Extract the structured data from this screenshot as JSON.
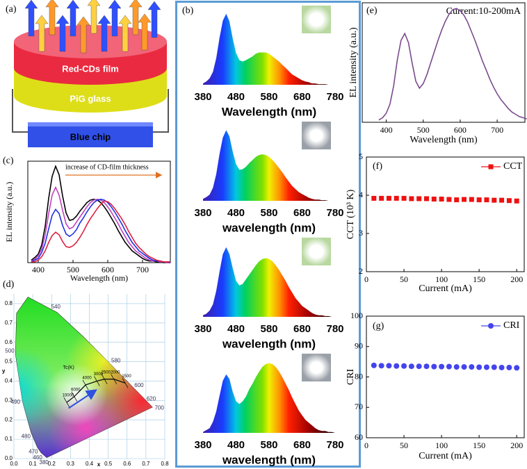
{
  "panel_labels": [
    "(a)",
    "(b)",
    "(c)",
    "(d)",
    "(e)",
    "(f)",
    "(g)"
  ],
  "diagram_a": {
    "layers": [
      "Red-CDs film",
      "PiG glass",
      "Blue chip"
    ]
  },
  "chart_data": [
    {
      "type": "line",
      "annotation": "increase of CD-film thickness",
      "xlabel": "Wavelength (nm)",
      "ylabel": "EL intensity (a.u.)",
      "x": [
        380,
        390,
        400,
        410,
        420,
        430,
        440,
        450,
        460,
        470,
        480,
        490,
        500,
        510,
        520,
        530,
        540,
        550,
        560,
        570,
        580,
        590,
        600,
        610,
        620,
        630,
        640,
        650,
        660,
        670,
        680,
        690,
        700,
        710,
        720,
        730,
        740,
        750,
        760,
        770,
        780
      ],
      "series": [
        {
          "color": "#000000",
          "values": [
            0.03,
            0.06,
            0.1,
            0.21,
            0.43,
            0.76,
            1.02,
            1.14,
            1.04,
            0.79,
            0.59,
            0.5,
            0.51,
            0.55,
            0.61,
            0.66,
            0.71,
            0.74,
            0.75,
            0.74,
            0.71,
            0.66,
            0.6,
            0.53,
            0.46,
            0.38,
            0.31,
            0.24,
            0.19,
            0.14,
            0.11,
            0.08,
            0.05,
            0.03,
            0.02,
            0.02,
            0.01,
            0.01,
            0,
            0,
            0
          ]
        },
        {
          "color": "#c040c0",
          "values": [
            0.02,
            0.04,
            0.08,
            0.16,
            0.33,
            0.58,
            0.8,
            0.89,
            0.8,
            0.62,
            0.46,
            0.4,
            0.42,
            0.48,
            0.54,
            0.6,
            0.66,
            0.71,
            0.74,
            0.75,
            0.74,
            0.71,
            0.66,
            0.6,
            0.53,
            0.46,
            0.38,
            0.31,
            0.24,
            0.19,
            0.14,
            0.11,
            0.08,
            0.05,
            0.03,
            0.02,
            0.02,
            0.01,
            0.01,
            0,
            0
          ]
        },
        {
          "color": "#2030e0",
          "values": [
            0.01,
            0.03,
            0.05,
            0.12,
            0.23,
            0.4,
            0.56,
            0.63,
            0.58,
            0.44,
            0.34,
            0.31,
            0.34,
            0.39,
            0.47,
            0.53,
            0.6,
            0.66,
            0.71,
            0.74,
            0.75,
            0.74,
            0.71,
            0.66,
            0.6,
            0.53,
            0.46,
            0.38,
            0.31,
            0.24,
            0.19,
            0.14,
            0.11,
            0.08,
            0.05,
            0.03,
            0.02,
            0.02,
            0.01,
            0.01,
            0
          ]
        },
        {
          "color": "#e02040",
          "values": [
            0.01,
            0.01,
            0.03,
            0.07,
            0.14,
            0.24,
            0.32,
            0.36,
            0.33,
            0.25,
            0.19,
            0.18,
            0.2,
            0.24,
            0.3,
            0.37,
            0.45,
            0.52,
            0.58,
            0.64,
            0.69,
            0.73,
            0.72,
            0.69,
            0.64,
            0.58,
            0.52,
            0.45,
            0.37,
            0.3,
            0.23,
            0.18,
            0.14,
            0.1,
            0.07,
            0.05,
            0.03,
            0.02,
            0.01,
            0.01,
            0.01
          ]
        }
      ],
      "xlim": [
        370,
        780
      ],
      "xticks": [
        400,
        500,
        600,
        700
      ],
      "ylim": [
        0,
        1.2
      ]
    },
    {
      "type": "cie",
      "xlabel": "x",
      "ylabel": "y",
      "xlim": [
        0,
        0.8
      ],
      "ylim": [
        0,
        0.85
      ],
      "grid": true,
      "xticks": [
        {
          "value": 0,
          "label": "0.0"
        },
        {
          "value": 0.1,
          "label": "0.1"
        },
        {
          "value": 0.2,
          "label": "0.2"
        },
        {
          "value": 0.3,
          "label": "0.3"
        },
        {
          "value": 0.4,
          "label": "0.4"
        },
        {
          "value": 0.5,
          "label": "0.5"
        },
        {
          "value": 0.6,
          "label": "0.6"
        },
        {
          "value": 0.7,
          "label": "0.7"
        },
        {
          "value": 0.8,
          "label": "0.8"
        }
      ],
      "yticks": [
        {
          "value": 0,
          "label": "0.0"
        },
        {
          "value": 0.1,
          "label": "0.1"
        },
        {
          "value": 0.2,
          "label": "0.2"
        },
        {
          "value": 0.3,
          "label": "0.3"
        },
        {
          "value": 0.4,
          "label": "0.4"
        },
        {
          "value": 0.5,
          "label": "0.5"
        },
        {
          "value": 0.6,
          "label": "0.6"
        },
        {
          "value": 0.7,
          "label": "0.7"
        },
        {
          "value": 0.8,
          "label": "0.8"
        }
      ],
      "spectral_locus": {
        "x": [
          0.1741,
          0.144,
          0.1241,
          0.0913,
          0.0454,
          0.0082,
          0.0139,
          0.0743,
          0.2296,
          0.3731,
          0.5125,
          0.627,
          0.6915,
          0.7347
        ],
        "y": [
          0.005,
          0.0297,
          0.0578,
          0.1327,
          0.295,
          0.5384,
          0.7502,
          0.8338,
          0.7543,
          0.6245,
          0.4866,
          0.3725,
          0.3083,
          0.2653
        ]
      },
      "wavelength_labels": [
        {
          "label": "380",
          "x": 0.1741,
          "y": 0.005
        },
        {
          "label": "460",
          "x": 0.144,
          "y": 0.0297
        },
        {
          "label": "470",
          "x": 0.1241,
          "y": 0.0578
        },
        {
          "label": "480",
          "x": 0.0913,
          "y": 0.1327
        },
        {
          "label": "490",
          "x": 0.0454,
          "y": 0.295
        },
        {
          "label": "500",
          "x": 0.0082,
          "y": 0.5384
        },
        {
          "label": "540",
          "x": 0.2296,
          "y": 0.7543
        },
        {
          "label": "580",
          "x": 0.5125,
          "y": 0.4866
        },
        {
          "label": "600",
          "x": 0.627,
          "y": 0.3725
        },
        {
          "label": "620",
          "x": 0.6915,
          "y": 0.3083
        },
        {
          "label": "700",
          "x": 0.7347,
          "y": 0.2653
        }
      ],
      "planckian": {
        "label": "Tc(K)",
        "x": [
          0.28,
          0.32,
          0.38,
          0.44,
          0.48,
          0.53,
          0.59
        ],
        "y": [
          0.29,
          0.32,
          0.38,
          0.4,
          0.41,
          0.41,
          0.39
        ],
        "labels": [
          "10000",
          "6000",
          "4000",
          "3000",
          "2500",
          "2000",
          "1500"
        ]
      }
    },
    {
      "type": "area",
      "xlabel": "Wavelength (nm)",
      "x": [
        380,
        390,
        400,
        410,
        420,
        430,
        440,
        450,
        460,
        470,
        480,
        490,
        500,
        510,
        520,
        530,
        540,
        550,
        560,
        570,
        580,
        590,
        600,
        610,
        620,
        630,
        640,
        650,
        660,
        670,
        680,
        690,
        700,
        710,
        720,
        730,
        740,
        750,
        760,
        770,
        780
      ],
      "values": [
        0.02,
        0.05,
        0.1,
        0.2,
        0.41,
        0.73,
        0.99,
        1.1,
        0.98,
        0.71,
        0.49,
        0.38,
        0.36,
        0.38,
        0.41,
        0.44,
        0.48,
        0.5,
        0.5,
        0.5,
        0.48,
        0.44,
        0.4,
        0.36,
        0.31,
        0.26,
        0.21,
        0.16,
        0.13,
        0.1,
        0.07,
        0.05,
        0.04,
        0.02,
        0.02,
        0.01,
        0.01,
        0.01,
        0,
        0,
        0
      ],
      "xlim": [
        380,
        780
      ],
      "xticks": [
        380,
        480,
        580,
        680,
        780
      ],
      "ylim": [
        0,
        1.15
      ]
    },
    {
      "type": "area",
      "xlabel": "wavelength (nm)",
      "x": [
        380,
        390,
        400,
        410,
        420,
        430,
        440,
        450,
        460,
        470,
        480,
        490,
        500,
        510,
        520,
        530,
        540,
        550,
        560,
        570,
        580,
        590,
        600,
        610,
        620,
        630,
        640,
        650,
        660,
        670,
        680,
        690,
        700,
        710,
        720,
        730,
        740,
        750,
        760,
        770,
        780
      ],
      "values": [
        0.03,
        0.06,
        0.1,
        0.21,
        0.43,
        0.76,
        1.02,
        1.14,
        1.04,
        0.79,
        0.59,
        0.5,
        0.51,
        0.55,
        0.61,
        0.66,
        0.71,
        0.74,
        0.75,
        0.74,
        0.71,
        0.66,
        0.6,
        0.53,
        0.46,
        0.38,
        0.31,
        0.24,
        0.19,
        0.14,
        0.11,
        0.08,
        0.05,
        0.03,
        0.02,
        0.02,
        0.01,
        0.01,
        0,
        0,
        0
      ],
      "xlim": [
        380,
        780
      ],
      "xticks": [
        380,
        480,
        580,
        680,
        780
      ],
      "ylim": [
        0,
        1.2
      ]
    },
    {
      "type": "area",
      "xlabel": "wavelength (nm)",
      "x": [
        380,
        390,
        400,
        410,
        420,
        430,
        440,
        450,
        460,
        470,
        480,
        490,
        500,
        510,
        520,
        530,
        540,
        550,
        560,
        570,
        580,
        590,
        600,
        610,
        620,
        630,
        640,
        650,
        660,
        670,
        680,
        690,
        700,
        710,
        720,
        730,
        740,
        750,
        760,
        770,
        780
      ],
      "values": [
        0.02,
        0.04,
        0.08,
        0.16,
        0.33,
        0.58,
        0.8,
        0.89,
        0.8,
        0.62,
        0.46,
        0.4,
        0.42,
        0.48,
        0.54,
        0.6,
        0.66,
        0.71,
        0.74,
        0.75,
        0.74,
        0.71,
        0.66,
        0.6,
        0.53,
        0.46,
        0.38,
        0.31,
        0.24,
        0.19,
        0.14,
        0.11,
        0.08,
        0.05,
        0.03,
        0.02,
        0.02,
        0.01,
        0.01,
        0,
        0
      ],
      "xlim": [
        380,
        780
      ],
      "xticks": [
        380,
        480,
        580,
        680,
        780
      ],
      "ylim": [
        0,
        0.95
      ]
    },
    {
      "type": "area",
      "xlabel": "wavelength (nm)",
      "x": [
        380,
        390,
        400,
        410,
        420,
        430,
        440,
        450,
        460,
        470,
        480,
        490,
        500,
        510,
        520,
        530,
        540,
        550,
        560,
        570,
        580,
        590,
        600,
        610,
        620,
        630,
        640,
        650,
        660,
        670,
        680,
        690,
        700,
        710,
        720,
        730,
        740,
        750,
        760,
        770,
        780
      ],
      "values": [
        0.01,
        0.03,
        0.05,
        0.12,
        0.23,
        0.4,
        0.56,
        0.63,
        0.58,
        0.44,
        0.34,
        0.31,
        0.34,
        0.39,
        0.47,
        0.53,
        0.6,
        0.66,
        0.71,
        0.74,
        0.75,
        0.74,
        0.71,
        0.66,
        0.6,
        0.53,
        0.46,
        0.38,
        0.31,
        0.24,
        0.19,
        0.14,
        0.11,
        0.08,
        0.05,
        0.03,
        0.02,
        0.02,
        0.01,
        0.01,
        0
      ],
      "xlim": [
        380,
        780
      ],
      "xticks": [
        380,
        480,
        580,
        680,
        780
      ],
      "ylim": [
        0,
        0.8
      ]
    },
    {
      "type": "line",
      "title": "Current:10-200mA",
      "xlabel": "Wavelength (nm)",
      "ylabel": "EL intensity (a.u.)",
      "x": [
        380,
        390,
        400,
        410,
        420,
        430,
        440,
        450,
        460,
        470,
        480,
        490,
        500,
        510,
        520,
        530,
        540,
        550,
        560,
        570,
        580,
        590,
        600,
        610,
        620,
        630,
        640,
        650,
        660,
        670,
        680,
        690,
        700,
        710,
        720,
        730,
        740,
        750,
        760,
        770,
        780
      ],
      "series": [
        {
          "color": "#7a4a8c",
          "values": [
            0.02,
            0.04,
            0.08,
            0.16,
            0.32,
            0.55,
            0.72,
            0.78,
            0.7,
            0.52,
            0.36,
            0.3,
            0.34,
            0.42,
            0.52,
            0.62,
            0.72,
            0.81,
            0.89,
            0.95,
            0.99,
            1,
            0.98,
            0.94,
            0.88,
            0.8,
            0.72,
            0.63,
            0.54,
            0.46,
            0.38,
            0.31,
            0.25,
            0.2,
            0.16,
            0.12,
            0.09,
            0.07,
            0.05,
            0.04,
            0.03
          ]
        }
      ],
      "xlim": [
        335,
        775
      ],
      "xticks": [
        400,
        500,
        600,
        700
      ],
      "ylim": [
        0,
        1.05
      ]
    },
    {
      "type": "scatter",
      "xlabel": "Current (mA)",
      "ylabel": "CCT (10³ K)",
      "legend": "upper right",
      "x": [
        10,
        20,
        30,
        40,
        50,
        60,
        70,
        80,
        90,
        100,
        110,
        120,
        130,
        140,
        150,
        160,
        170,
        180,
        190,
        200
      ],
      "series": [
        {
          "name": "CCT",
          "color": "#ee1111",
          "marker": "square",
          "values": [
            3.92,
            3.92,
            3.92,
            3.92,
            3.92,
            3.91,
            3.91,
            3.91,
            3.9,
            3.9,
            3.89,
            3.88,
            3.89,
            3.89,
            3.88,
            3.88,
            3.87,
            3.87,
            3.86,
            3.85
          ]
        }
      ],
      "xlim": [
        0,
        210
      ],
      "xticks": [
        0,
        50,
        100,
        150,
        200
      ],
      "ylim": [
        2,
        5
      ],
      "yticks": [
        2,
        3,
        4,
        5
      ]
    },
    {
      "type": "scatter",
      "xlabel": "Current (mA)",
      "ylabel": "CRI",
      "legend": "upper right",
      "x": [
        10,
        20,
        30,
        40,
        50,
        60,
        70,
        80,
        90,
        100,
        110,
        120,
        130,
        140,
        150,
        160,
        170,
        180,
        190,
        200
      ],
      "series": [
        {
          "name": "CRI",
          "color": "#4444ee",
          "marker": "circle",
          "values": [
            83.8,
            83.7,
            83.7,
            83.6,
            83.6,
            83.5,
            83.5,
            83.5,
            83.4,
            83.4,
            83.4,
            83.3,
            83.3,
            83.3,
            83.2,
            83.2,
            83.2,
            83.1,
            83.1,
            83.0
          ]
        }
      ],
      "xlim": [
        0,
        210
      ],
      "xticks": [
        0,
        50,
        100,
        150,
        200
      ],
      "ylim": [
        60,
        100
      ],
      "yticks": [
        60,
        70,
        80,
        90,
        100
      ]
    }
  ]
}
